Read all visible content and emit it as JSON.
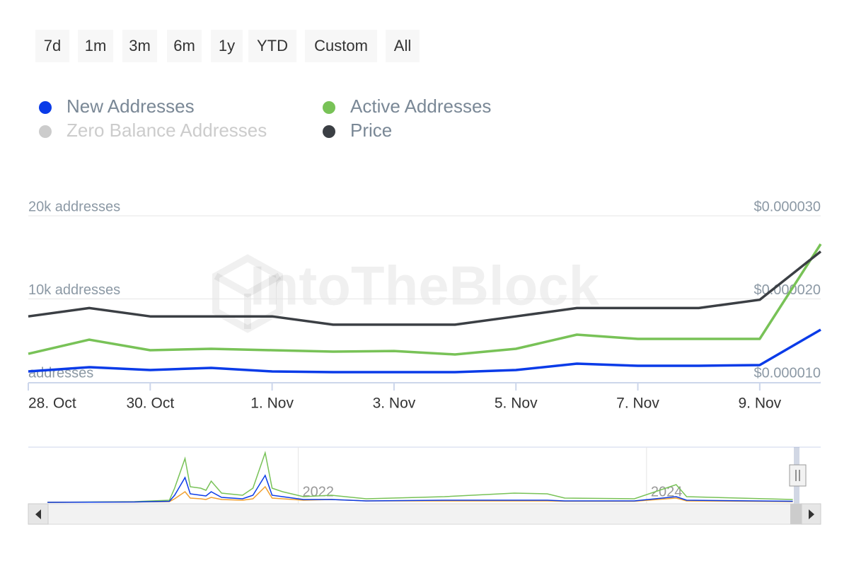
{
  "chart_data": {
    "type": "line",
    "range_buttons": [
      "7d",
      "1m",
      "3m",
      "6m",
      "1y",
      "YTD",
      "Custom",
      "All"
    ],
    "watermark": "IntoTheBlock",
    "categories": [
      "28. Oct",
      null,
      "30. Oct",
      null,
      "1. Nov",
      null,
      "3. Nov",
      null,
      "5. Nov",
      null,
      "7. Nov",
      null,
      "9. Nov",
      null
    ],
    "series": [
      {
        "name": "New Addresses",
        "color": "#0a3be8",
        "axis": "y",
        "values": [
          1280,
          1790,
          1450,
          1700,
          1280,
          1190,
          1190,
          1190,
          1450,
          2210,
          1960,
          1960,
          2040,
          6300
        ]
      },
      {
        "name": "Active Addresses",
        "color": "#78c257",
        "axis": "y",
        "values": [
          3400,
          5100,
          3830,
          4000,
          3830,
          3660,
          3740,
          3320,
          4000,
          5700,
          5190,
          5190,
          5190,
          16600
        ]
      },
      {
        "name": "Zero Balance Addresses",
        "color": "#cccccc",
        "visible": false
      },
      {
        "name": "Price",
        "color": "#3b3f44",
        "axis": "y2",
        "values": [
          1.79e-05,
          1.89e-05,
          1.79e-05,
          1.79e-05,
          1.79e-05,
          1.69e-05,
          1.69e-05,
          1.69e-05,
          1.79e-05,
          1.89e-05,
          1.89e-05,
          1.89e-05,
          1.99e-05,
          2.57e-05
        ]
      }
    ],
    "ylim": [
      0,
      20000
    ],
    "yticks": [
      {
        "value": 0,
        "label": "addresses"
      },
      {
        "value": 10000,
        "label": "10k addresses"
      },
      {
        "value": 20000,
        "label": "20k addresses"
      }
    ],
    "y2lim": [
      1e-05,
      3e-05
    ],
    "y2ticks": [
      {
        "value": 1e-05,
        "label": "$0.000010"
      },
      {
        "value": 2e-05,
        "label": "$0.000020"
      },
      {
        "value": 3e-05,
        "label": "$0.000030"
      }
    ],
    "grid": true,
    "navigator": {
      "x": [
        2020.56,
        2021.06,
        2021.26,
        2021.29,
        2021.35,
        2021.38,
        2021.44,
        2021.47,
        2021.5,
        2021.56,
        2021.68,
        2021.74,
        2021.81,
        2021.85,
        2021.91,
        2022.03,
        2022.19,
        2022.39,
        2022.84,
        2023.24,
        2023.43,
        2023.53,
        2023.93,
        2024.17,
        2024.23,
        2024.84
      ],
      "xlim": [
        2020.45,
        2025.0
      ],
      "xticks": [
        2022,
        2024
      ],
      "ylim": [
        0,
        75000
      ],
      "series": [
        {
          "color": "#78c257",
          "values": [
            0,
            1000,
            3000,
            20000,
            62000,
            22000,
            20000,
            17000,
            30000,
            13000,
            10000,
            20000,
            70000,
            20000,
            15000,
            8000,
            10000,
            5000,
            8000,
            13000,
            12000,
            6000,
            5000,
            25000,
            8000,
            4000
          ]
        },
        {
          "color": "#f0a030",
          "values": [
            0,
            500,
            1000,
            5000,
            15000,
            6000,
            5000,
            4000,
            7000,
            4000,
            3000,
            5000,
            22000,
            6000,
            5000,
            3000,
            4000,
            2000,
            2000,
            2000,
            2000,
            1500,
            1500,
            6000,
            2000,
            1000
          ]
        },
        {
          "color": "#0a3be8",
          "values": [
            0,
            500,
            1500,
            10000,
            35000,
            12000,
            10000,
            9000,
            15000,
            7000,
            5000,
            10000,
            38000,
            10000,
            8000,
            4000,
            4000,
            2000,
            3000,
            3000,
            3000,
            2000,
            2000,
            8000,
            3000,
            1500
          ]
        }
      ]
    }
  }
}
